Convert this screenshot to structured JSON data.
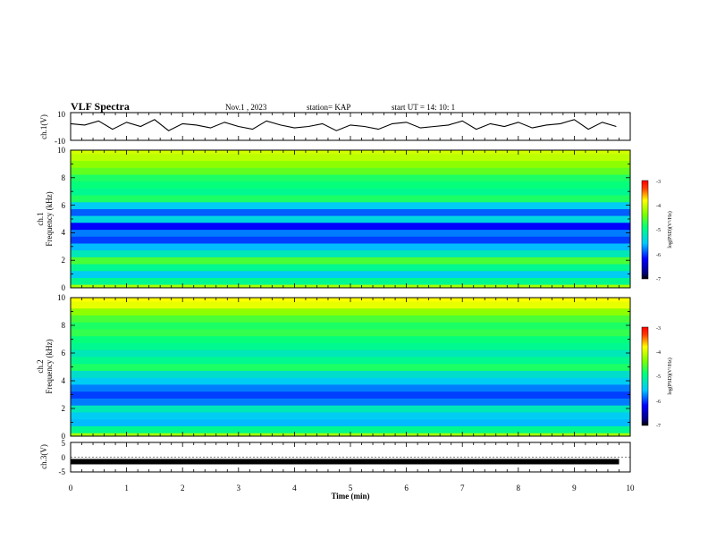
{
  "header": {
    "title": "VLF Spectra",
    "date": "Nov.1 , 2023",
    "station": "station= KAP",
    "start": "start UT = 14: 10: 1"
  },
  "colors": {
    "waveform": "#000000",
    "axis": "#000000"
  },
  "chart_data": [
    {
      "type": "line",
      "panel": "ch1-waveform",
      "ylabel": "ch.1(V)",
      "ylim": [
        -10,
        10
      ],
      "yticks": [
        "10",
        "-10"
      ],
      "xlim": [
        0,
        10
      ],
      "x": [
        0,
        0.25,
        0.5,
        0.75,
        1,
        1.25,
        1.5,
        1.75,
        2,
        2.25,
        2.5,
        2.75,
        3,
        3.25,
        3.5,
        3.75,
        4,
        4.25,
        4.5,
        4.75,
        5,
        5.25,
        5.5,
        5.75,
        6,
        6.25,
        6.5,
        6.75,
        7,
        7.25,
        7.5,
        7.75,
        8,
        8.25,
        8.5,
        8.75,
        9,
        9.25,
        9.5,
        9.75
      ],
      "values": [
        2,
        1,
        4,
        -2,
        3,
        0,
        5,
        -3,
        2,
        1,
        -1,
        3,
        0,
        -2,
        4,
        1,
        -1,
        0,
        2,
        -3,
        1,
        0,
        -2,
        2,
        3,
        -1,
        0,
        1,
        4,
        -2,
        2,
        0,
        3,
        -1,
        1,
        2,
        5,
        -2,
        3,
        0
      ]
    },
    {
      "type": "heatmap",
      "panel": "ch1-spectrogram",
      "ylabel_lines": [
        "ch.1",
        "Frequency (kHz)"
      ],
      "yticks": [
        "0",
        "2",
        "4",
        "6",
        "8",
        "10"
      ],
      "ylim": [
        0,
        10
      ],
      "xlim": [
        0,
        10
      ],
      "freq_kHz": [
        0,
        0.5,
        1,
        1.5,
        2,
        2.5,
        3,
        3.5,
        4,
        4.5,
        5,
        5.5,
        6,
        6.5,
        7,
        7.5,
        8,
        8.5,
        9,
        9.5,
        10
      ],
      "log_psd": [
        -4.2,
        -5,
        -5.5,
        -5,
        -4.6,
        -5.2,
        -5.6,
        -6,
        -5.8,
        -6.2,
        -5.4,
        -5.9,
        -5.5,
        -4.8,
        -5,
        -4.9,
        -4.8,
        -4.5,
        -4.3,
        -4.1,
        -4
      ],
      "colorbar": {
        "ticks": [
          "-3",
          "-4",
          "-5",
          "-6",
          "-7"
        ],
        "range": [
          -7,
          -3
        ],
        "label": "log(PSD)(V²/Hz)"
      }
    },
    {
      "type": "heatmap",
      "panel": "ch2-spectrogram",
      "ylabel_lines": [
        "ch.2",
        "Frequency (kHz)"
      ],
      "yticks": [
        "0",
        "2",
        "4",
        "6",
        "8",
        "10"
      ],
      "ylim": [
        0,
        10
      ],
      "xlim": [
        0,
        10
      ],
      "freq_kHz": [
        0,
        0.5,
        1,
        1.5,
        2,
        2.5,
        3,
        3.5,
        4,
        4.5,
        5,
        5.5,
        6,
        6.5,
        7,
        7.5,
        8,
        8.5,
        9,
        9.5,
        10
      ],
      "log_psd": [
        -4.2,
        -5,
        -5.6,
        -5.5,
        -5.2,
        -5.8,
        -6,
        -5.8,
        -5.5,
        -5.3,
        -4.8,
        -5,
        -5.2,
        -5,
        -4.9,
        -4.7,
        -4.8,
        -4.6,
        -4.3,
        -3.9,
        -3.8
      ],
      "colorbar": {
        "ticks": [
          "-3",
          "-4",
          "-5",
          "-6",
          "-7"
        ],
        "range": [
          -7,
          -3
        ],
        "label": "log(PSD)(V²/Hz)"
      }
    },
    {
      "type": "line",
      "panel": "ch3-waveform",
      "ylabel": "ch.3(V)",
      "ylim": [
        -5,
        5
      ],
      "yticks": [
        "5",
        "0",
        "-5"
      ],
      "xlim": [
        0,
        10
      ],
      "xticks": [
        "0",
        "1",
        "2",
        "3",
        "4",
        "5",
        "6",
        "7",
        "8",
        "9",
        "10"
      ],
      "xlabel": "Time (min)",
      "x": [
        0,
        9.8
      ],
      "values": [
        -1.5,
        -1.5
      ]
    }
  ]
}
